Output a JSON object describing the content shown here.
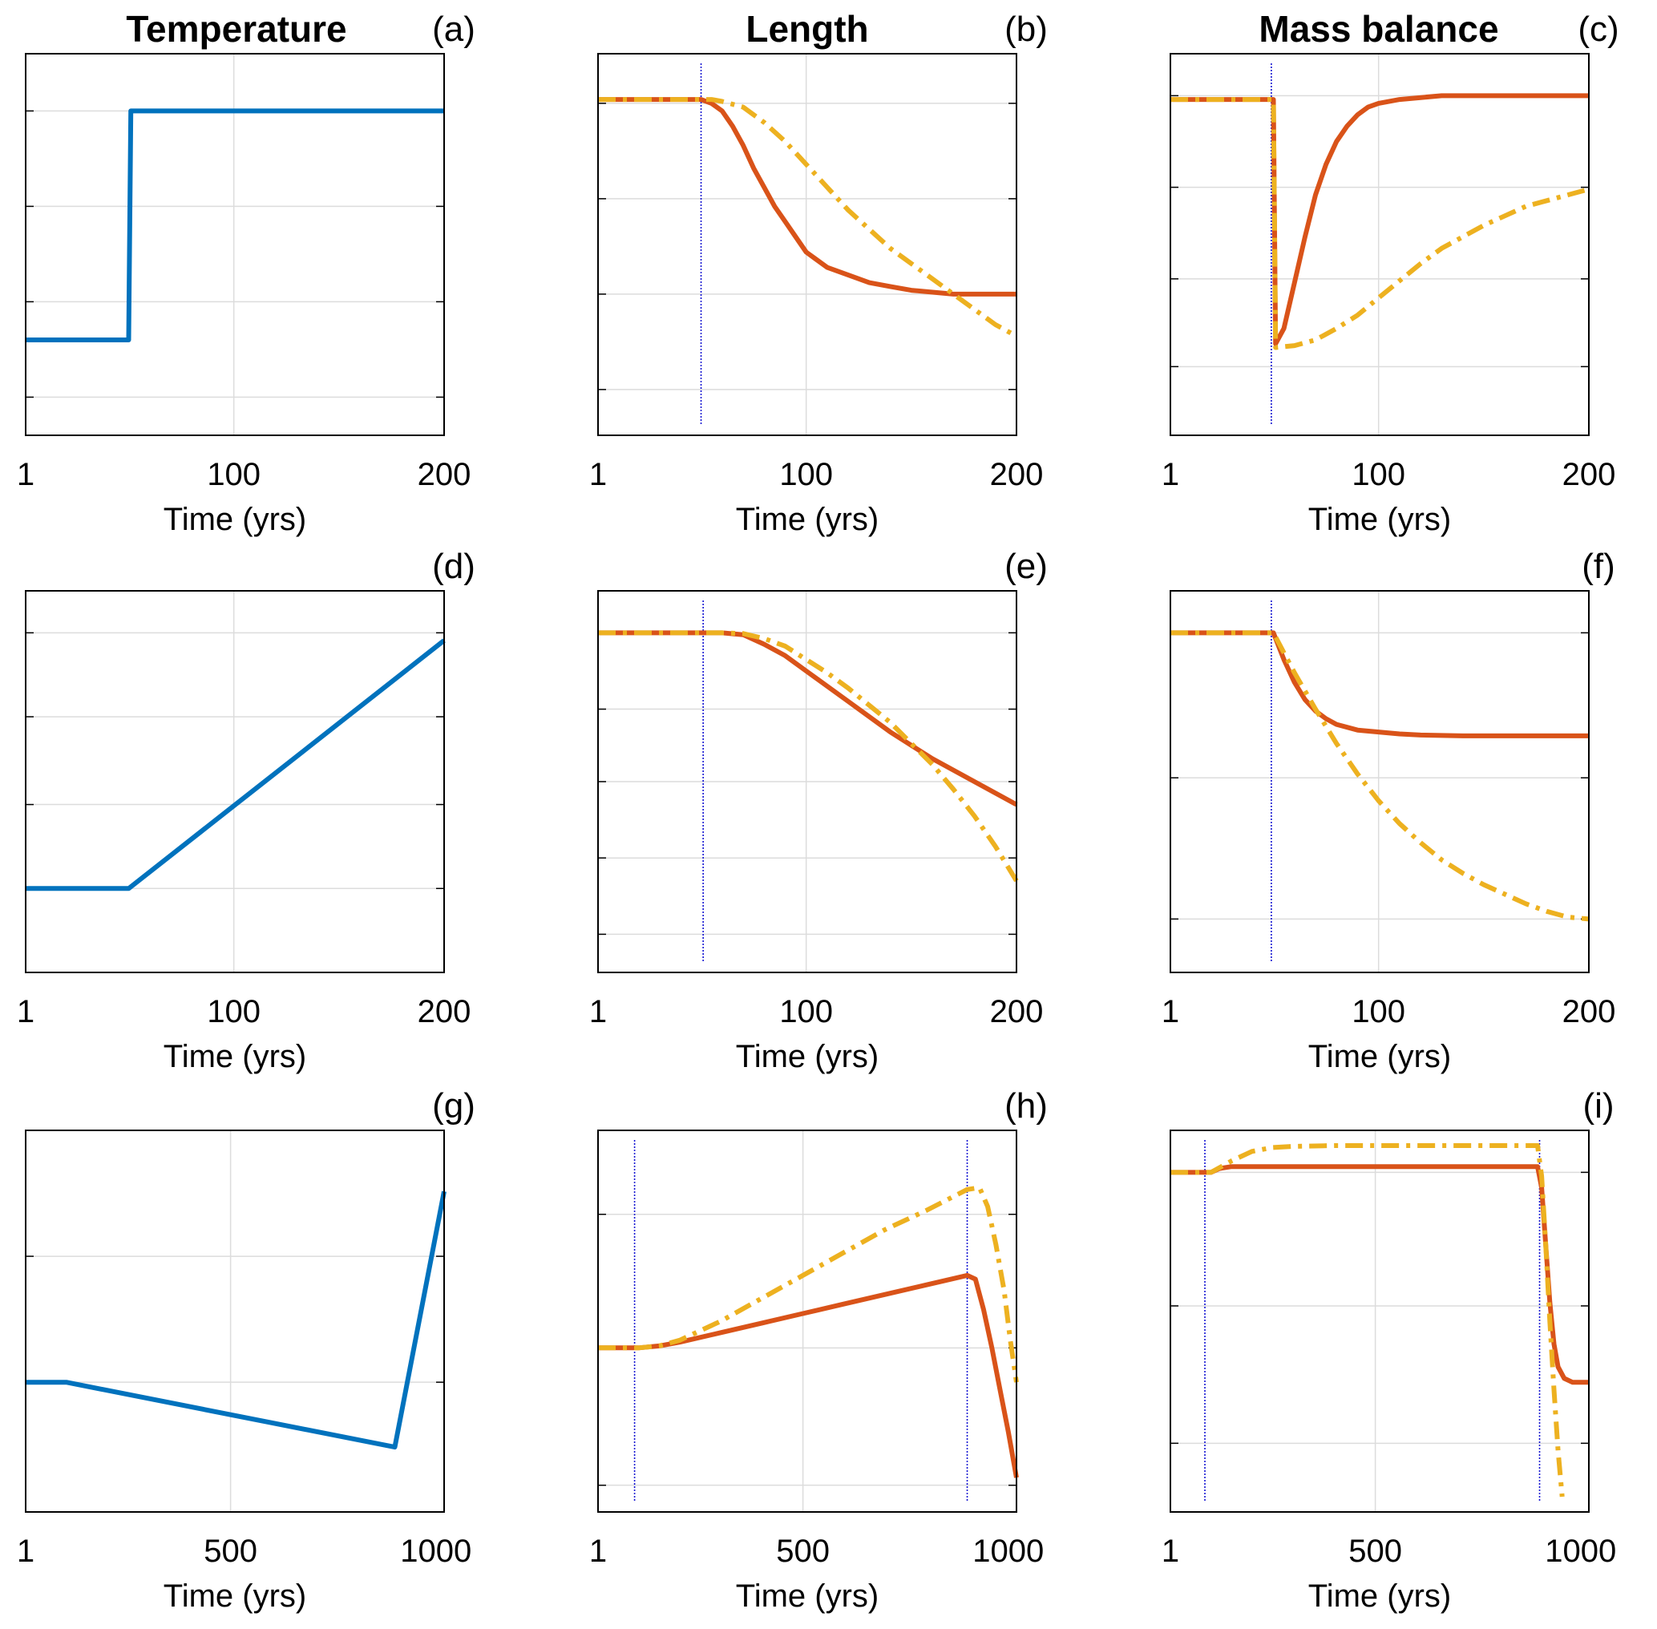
{
  "figure": {
    "column_titles": [
      "Temperature",
      "Length",
      "Mass balance"
    ]
  },
  "chart_data": [
    {
      "id": "a",
      "panel_label": "(a)",
      "type": "line",
      "title": "Temperature",
      "xlabel": "Time (yrs)",
      "x_ticks": [
        "1",
        "100",
        "200"
      ],
      "x_tick_values": [
        1,
        100,
        200
      ],
      "xlim": [
        1,
        200
      ],
      "ylim": [
        0,
        10
      ],
      "y_grid": [
        1,
        3.5,
        6,
        8.5
      ],
      "grid": true,
      "series": [
        {
          "color": "#0072BD",
          "style": "solid",
          "x": [
            1,
            50,
            50,
            51,
            200
          ],
          "y": [
            2.5,
            2.5,
            2.5,
            8.5,
            8.5
          ]
        }
      ]
    },
    {
      "id": "b",
      "panel_label": "(b)",
      "type": "line",
      "title": "Length",
      "xlabel": "Time (yrs)",
      "x_ticks": [
        "1",
        "100",
        "200"
      ],
      "x_tick_values": [
        1,
        100,
        200
      ],
      "xlim": [
        1,
        200
      ],
      "ylim": [
        0,
        10
      ],
      "y_grid": [
        1.2,
        3.7,
        6.2,
        8.7
      ],
      "grid": true,
      "vlines": [
        50
      ],
      "series": [
        {
          "color": "#D95319",
          "style": "solid",
          "x": [
            1,
            50,
            55,
            60,
            65,
            70,
            75,
            80,
            85,
            90,
            95,
            100,
            110,
            120,
            130,
            140,
            150,
            170,
            200
          ],
          "y": [
            8.8,
            8.8,
            8.7,
            8.5,
            8.1,
            7.6,
            7.0,
            6.5,
            6.0,
            5.6,
            5.2,
            4.8,
            4.4,
            4.2,
            4.0,
            3.9,
            3.8,
            3.7,
            3.7
          ]
        },
        {
          "color": "#EDB120",
          "style": "dashdot",
          "x": [
            1,
            55,
            60,
            70,
            80,
            90,
            100,
            110,
            120,
            130,
            140,
            150,
            160,
            170,
            180,
            190,
            200
          ],
          "y": [
            8.8,
            8.8,
            8.75,
            8.6,
            8.2,
            7.7,
            7.1,
            6.5,
            5.9,
            5.4,
            4.9,
            4.5,
            4.1,
            3.7,
            3.3,
            2.9,
            2.6
          ]
        }
      ]
    },
    {
      "id": "c",
      "panel_label": "(c)",
      "type": "line",
      "title": "Mass balance",
      "xlabel": "Time (yrs)",
      "x_ticks": [
        "1",
        "100",
        "200"
      ],
      "x_tick_values": [
        1,
        100,
        200
      ],
      "xlim": [
        1,
        200
      ],
      "ylim": [
        0,
        10
      ],
      "y_grid": [
        1.8,
        4.1,
        6.5,
        8.9
      ],
      "grid": true,
      "vlines": [
        49
      ],
      "series": [
        {
          "color": "#D95319",
          "style": "solid",
          "x": [
            1,
            50,
            51,
            55,
            60,
            65,
            70,
            75,
            80,
            85,
            90,
            95,
            100,
            110,
            120,
            130,
            140,
            150,
            170,
            200
          ],
          "y": [
            8.8,
            8.8,
            2.4,
            2.8,
            4.0,
            5.2,
            6.3,
            7.1,
            7.7,
            8.1,
            8.4,
            8.6,
            8.7,
            8.8,
            8.85,
            8.9,
            8.9,
            8.9,
            8.9,
            8.9
          ]
        },
        {
          "color": "#EDB120",
          "style": "dashdot",
          "x": [
            1,
            50,
            51,
            60,
            70,
            80,
            90,
            100,
            110,
            120,
            130,
            140,
            150,
            160,
            170,
            180,
            190,
            200
          ],
          "y": [
            8.8,
            8.8,
            2.3,
            2.35,
            2.5,
            2.8,
            3.15,
            3.6,
            4.05,
            4.5,
            4.9,
            5.2,
            5.5,
            5.75,
            6.0,
            6.15,
            6.3,
            6.45
          ]
        }
      ]
    },
    {
      "id": "d",
      "panel_label": "(d)",
      "type": "line",
      "title": "",
      "xlabel": "Time (yrs)",
      "x_ticks": [
        "1",
        "100",
        "200"
      ],
      "x_tick_values": [
        1,
        100,
        200
      ],
      "xlim": [
        1,
        200
      ],
      "ylim": [
        0,
        10
      ],
      "y_grid": [
        2.2,
        4.4,
        6.7,
        8.9
      ],
      "grid": true,
      "series": [
        {
          "color": "#0072BD",
          "style": "solid",
          "x": [
            1,
            50,
            200
          ],
          "y": [
            2.2,
            2.2,
            8.7
          ]
        }
      ]
    },
    {
      "id": "e",
      "panel_label": "(e)",
      "type": "line",
      "title": "",
      "xlabel": "Time (yrs)",
      "x_ticks": [
        "1",
        "100",
        "200"
      ],
      "x_tick_values": [
        1,
        100,
        200
      ],
      "xlim": [
        1,
        200
      ],
      "ylim": [
        0,
        10
      ],
      "y_grid": [
        1.0,
        3.0,
        5.0,
        6.9,
        8.9
      ],
      "grid": true,
      "vlines": [
        51
      ],
      "series": [
        {
          "color": "#D95319",
          "style": "solid",
          "x": [
            1,
            60,
            70,
            80,
            90,
            100,
            120,
            140,
            160,
            180,
            200
          ],
          "y": [
            8.9,
            8.9,
            8.85,
            8.6,
            8.3,
            7.9,
            7.1,
            6.3,
            5.6,
            5.0,
            4.4
          ]
        },
        {
          "color": "#EDB120",
          "style": "dashdot",
          "x": [
            1,
            60,
            70,
            80,
            90,
            100,
            110,
            120,
            130,
            140,
            150,
            160,
            170,
            180,
            190,
            200
          ],
          "y": [
            8.9,
            8.9,
            8.88,
            8.75,
            8.55,
            8.2,
            7.85,
            7.45,
            7.0,
            6.55,
            6.0,
            5.45,
            4.8,
            4.1,
            3.3,
            2.4
          ]
        }
      ]
    },
    {
      "id": "f",
      "panel_label": "(f)",
      "type": "line",
      "title": "",
      "xlabel": "Time (yrs)",
      "x_ticks": [
        "1",
        "100",
        "200"
      ],
      "x_tick_values": [
        1,
        100,
        200
      ],
      "xlim": [
        1,
        200
      ],
      "ylim": [
        0,
        10
      ],
      "y_grid": [
        1.4,
        5.1,
        8.9
      ],
      "grid": true,
      "vlines": [
        49
      ],
      "series": [
        {
          "color": "#D95319",
          "style": "solid",
          "x": [
            1,
            50,
            55,
            60,
            65,
            70,
            75,
            80,
            90,
            100,
            110,
            120,
            140,
            160,
            200
          ],
          "y": [
            8.9,
            8.9,
            8.2,
            7.6,
            7.15,
            6.85,
            6.65,
            6.5,
            6.35,
            6.3,
            6.25,
            6.22,
            6.2,
            6.2,
            6.2
          ]
        },
        {
          "color": "#EDB120",
          "style": "dashdot",
          "x": [
            1,
            50,
            60,
            70,
            80,
            90,
            100,
            110,
            120,
            130,
            140,
            150,
            160,
            170,
            180,
            190,
            200
          ],
          "y": [
            8.9,
            8.9,
            7.85,
            6.9,
            6.0,
            5.2,
            4.5,
            3.9,
            3.4,
            2.95,
            2.6,
            2.3,
            2.05,
            1.8,
            1.6,
            1.45,
            1.4
          ]
        }
      ]
    },
    {
      "id": "g",
      "panel_label": "(g)",
      "type": "line",
      "title": "",
      "xlabel": "Time (yrs)",
      "x_ticks": [
        "1",
        "500",
        "1000"
      ],
      "x_tick_values": [
        1,
        500,
        1000
      ],
      "xlim": [
        1,
        1020
      ],
      "ylim": [
        0,
        10
      ],
      "y_grid": [
        3.4,
        6.7
      ],
      "grid": true,
      "series": [
        {
          "color": "#0072BD",
          "style": "solid",
          "x": [
            1,
            100,
            900,
            1020
          ],
          "y": [
            3.4,
            3.4,
            1.7,
            8.4
          ]
        }
      ]
    },
    {
      "id": "h",
      "panel_label": "(h)",
      "type": "line",
      "title": "",
      "xlabel": "Time (yrs)",
      "x_ticks": [
        "1",
        "500",
        "1000"
      ],
      "x_tick_values": [
        1,
        500,
        1000
      ],
      "xlim": [
        1,
        1020
      ],
      "ylim": [
        0,
        10
      ],
      "y_grid": [
        0.7,
        4.3,
        7.8
      ],
      "grid": true,
      "vlines": [
        90,
        900
      ],
      "series": [
        {
          "color": "#D95319",
          "style": "solid",
          "x": [
            1,
            100,
            150,
            200,
            300,
            400,
            500,
            600,
            700,
            800,
            900,
            920,
            940,
            960,
            980,
            1000,
            1020
          ],
          "y": [
            4.3,
            4.3,
            4.35,
            4.45,
            4.7,
            4.95,
            5.2,
            5.45,
            5.7,
            5.95,
            6.2,
            6.1,
            5.3,
            4.3,
            3.2,
            2.1,
            0.9
          ]
        },
        {
          "color": "#EDB120",
          "style": "dashdot",
          "x": [
            1,
            100,
            150,
            200,
            300,
            400,
            500,
            600,
            700,
            800,
            900,
            930,
            950,
            970,
            990,
            1005,
            1020
          ],
          "y": [
            4.3,
            4.3,
            4.35,
            4.5,
            5.0,
            5.6,
            6.2,
            6.8,
            7.4,
            7.9,
            8.45,
            8.5,
            8.0,
            7.0,
            5.8,
            4.5,
            3.4
          ]
        }
      ]
    },
    {
      "id": "i",
      "panel_label": "(i)",
      "type": "line",
      "title": "",
      "xlabel": "Time (yrs)",
      "x_ticks": [
        "1",
        "500",
        "1000"
      ],
      "x_tick_values": [
        1,
        500,
        1000
      ],
      "xlim": [
        1,
        1020
      ],
      "ylim": [
        0,
        10
      ],
      "y_grid": [
        1.8,
        5.4,
        8.9
      ],
      "grid": true,
      "vlines": [
        85,
        900
      ],
      "series": [
        {
          "color": "#D95319",
          "style": "solid",
          "x": [
            1,
            100,
            120,
            150,
            200,
            400,
            600,
            800,
            895,
            905,
            915,
            925,
            935,
            945,
            960,
            980,
            1000,
            1020
          ],
          "y": [
            8.9,
            8.9,
            9.0,
            9.05,
            9.05,
            9.05,
            9.05,
            9.05,
            9.05,
            8.5,
            7.0,
            5.5,
            4.4,
            3.8,
            3.5,
            3.4,
            3.4,
            3.4
          ]
        },
        {
          "color": "#EDB120",
          "style": "dashdot",
          "x": [
            1,
            100,
            150,
            200,
            250,
            300,
            400,
            600,
            800,
            895,
            905,
            915,
            925,
            935,
            945,
            955
          ],
          "y": [
            8.9,
            8.9,
            9.2,
            9.45,
            9.55,
            9.58,
            9.6,
            9.6,
            9.6,
            9.6,
            8.8,
            7.0,
            5.0,
            3.2,
            1.6,
            0.4
          ]
        }
      ]
    }
  ]
}
